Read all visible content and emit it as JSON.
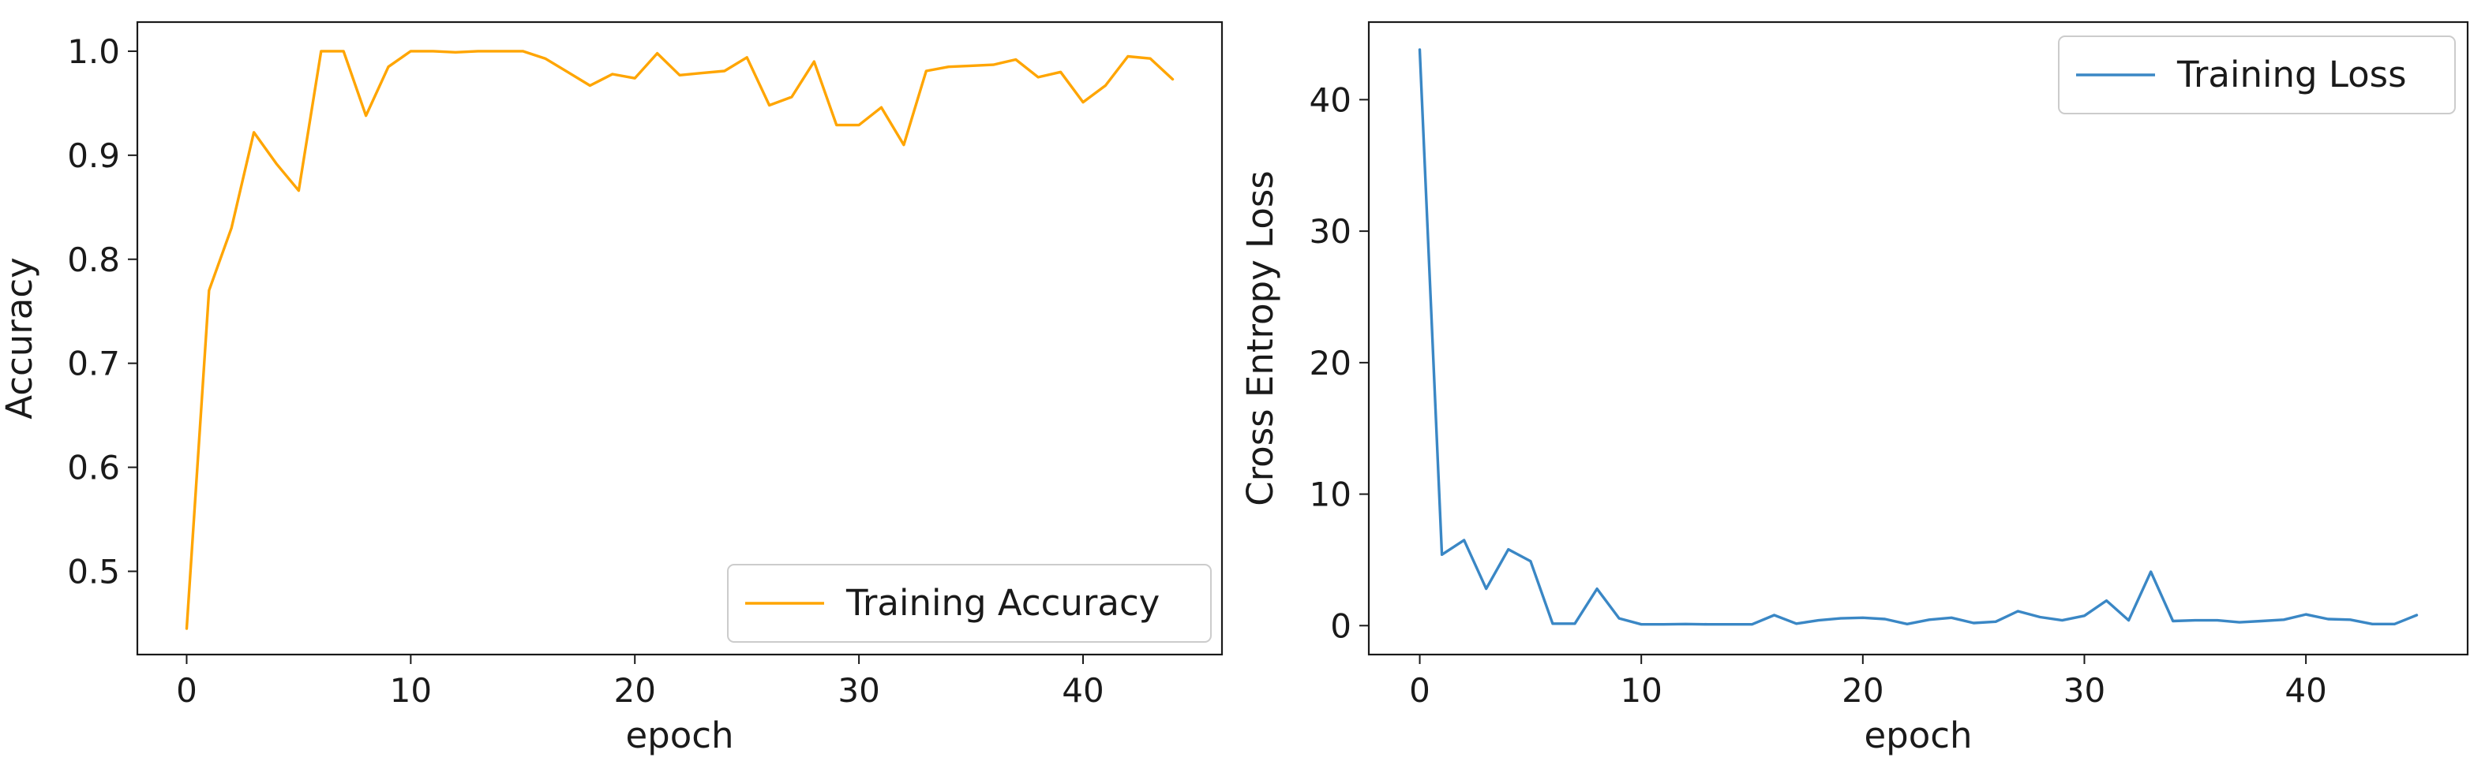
{
  "chart_data": [
    {
      "type": "line",
      "title": "",
      "xlabel": "epoch",
      "ylabel": "Accuracy",
      "xlim": [
        -2.2,
        46.2
      ],
      "ylim": [
        0.42,
        1.028
      ],
      "xticks": [
        0,
        10,
        20,
        30,
        40
      ],
      "yticks": [
        0.5,
        0.6,
        0.7,
        0.8,
        0.9,
        1.0
      ],
      "ytick_labels": [
        "0.5",
        "0.6",
        "0.7",
        "0.8",
        "0.9",
        "1.0"
      ],
      "grid": false,
      "legend_position": "lower-right",
      "series": [
        {
          "name": "Training Accuracy",
          "color": "#ffa500",
          "x": [
            0,
            1,
            2,
            3,
            4,
            5,
            6,
            7,
            8,
            9,
            10,
            11,
            12,
            13,
            14,
            15,
            16,
            17,
            18,
            19,
            20,
            21,
            22,
            23,
            24,
            25,
            26,
            27,
            28,
            29,
            30,
            31,
            32,
            33,
            34,
            35,
            36,
            37,
            38,
            39,
            40,
            41,
            42,
            43,
            44
          ],
          "values": [
            0.445,
            0.77,
            0.83,
            0.922,
            0.892,
            0.866,
            1.0,
            1.0,
            0.938,
            0.985,
            1.0,
            1.0,
            0.999,
            1.0,
            1.0,
            1.0,
            0.993,
            0.98,
            0.967,
            0.978,
            0.974,
            0.998,
            0.977,
            0.979,
            0.981,
            0.994,
            0.948,
            0.956,
            0.99,
            0.929,
            0.929,
            0.946,
            0.91,
            0.981,
            0.985,
            0.986,
            0.987,
            0.992,
            0.975,
            0.98,
            0.951,
            0.967,
            0.995,
            0.993,
            0.973
          ]
        }
      ]
    },
    {
      "type": "line",
      "title": "",
      "xlabel": "epoch",
      "ylabel": "Cross Entropy Loss",
      "xlim": [
        -2.3,
        47.3
      ],
      "ylim": [
        -2.2,
        45.9
      ],
      "xticks": [
        0,
        10,
        20,
        30,
        40
      ],
      "yticks": [
        0,
        10,
        20,
        30,
        40
      ],
      "ytick_labels": [
        "0",
        "10",
        "20",
        "30",
        "40"
      ],
      "grid": false,
      "legend_position": "upper-right",
      "series": [
        {
          "name": "Training Loss",
          "color": "#3a87c5",
          "x": [
            0,
            1,
            2,
            3,
            4,
            5,
            6,
            7,
            8,
            9,
            10,
            11,
            12,
            13,
            14,
            15,
            16,
            17,
            18,
            19,
            20,
            21,
            22,
            23,
            24,
            25,
            26,
            27,
            28,
            29,
            30,
            31,
            32,
            33,
            34,
            35,
            36,
            37,
            38,
            39,
            40,
            41,
            42,
            43,
            44,
            45
          ],
          "values": [
            43.8,
            5.4,
            6.5,
            2.8,
            5.8,
            4.9,
            0.15,
            0.15,
            2.8,
            0.55,
            0.1,
            0.1,
            0.12,
            0.1,
            0.1,
            0.1,
            0.8,
            0.15,
            0.4,
            0.55,
            0.6,
            0.5,
            0.12,
            0.45,
            0.6,
            0.2,
            0.3,
            1.1,
            0.65,
            0.4,
            0.75,
            1.9,
            0.4,
            4.1,
            0.35,
            0.4,
            0.4,
            0.25,
            0.35,
            0.45,
            0.85,
            0.5,
            0.45,
            0.12,
            0.12,
            0.8
          ]
        }
      ]
    }
  ]
}
